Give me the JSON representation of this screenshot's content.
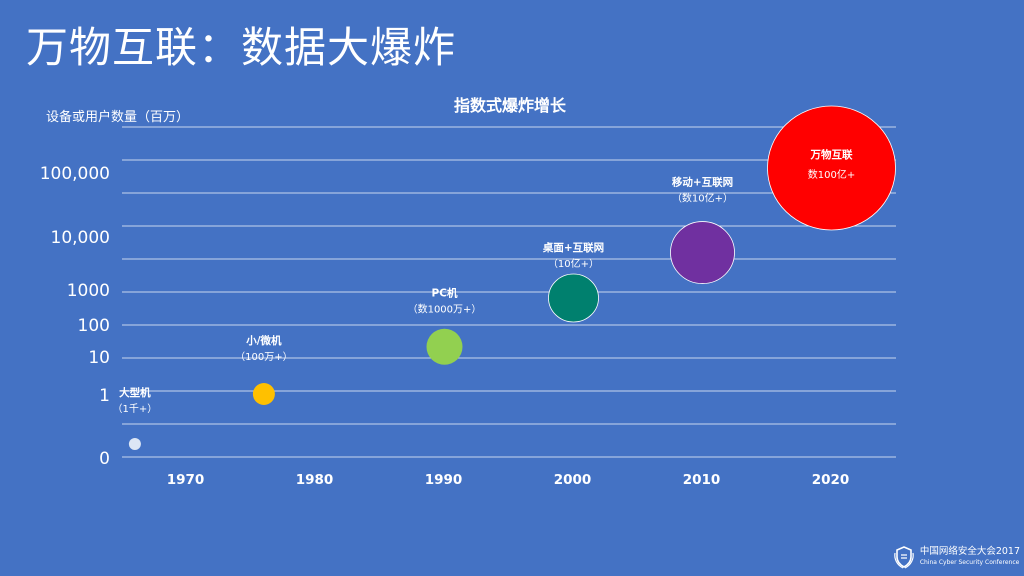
{
  "slide": {
    "title": "万物互联：数据大爆炸"
  },
  "chart_data": {
    "type": "scatter",
    "title": "指数式爆炸增长",
    "ylabel": "设备或用户数量（百万）",
    "xlabel": "",
    "x_ticks": [
      "1970",
      "1980",
      "1990",
      "2000",
      "2010",
      "2020"
    ],
    "y_ticks": [
      "0",
      "1",
      "10",
      "100",
      "1000",
      "10,000",
      "100,000"
    ],
    "grid": true,
    "legend": "none",
    "series": [
      {
        "points": [
          {
            "label": "大型机",
            "sublabel": "（1千+）",
            "x": 1966,
            "y": 0.001,
            "color": "#dce6f5",
            "size": 1
          },
          {
            "label": "小/微机",
            "sublabel": "（100万+）",
            "x": 1976,
            "y": 1,
            "color": "#ffc000",
            "size": 2
          },
          {
            "label": "PC机",
            "sublabel": "（数1000万+）",
            "x": 1990,
            "y": 30,
            "color": "#92d050",
            "size": 3
          },
          {
            "label": "桌面+互联网",
            "sublabel": "（10亿+）",
            "x": 2000,
            "y": 1000,
            "color": "#00806e",
            "size": 4
          },
          {
            "label": "移动+互联网",
            "sublabel": "（数10亿+）",
            "x": 2010,
            "y": 5000,
            "color": "#7030a0",
            "size": 5
          },
          {
            "label": "万物互联",
            "sublabel": "数100亿+",
            "x": 2020,
            "y": 100000,
            "color": "#ff0000",
            "size": 6
          }
        ]
      }
    ]
  },
  "footer": {
    "logo_icon": "shield-laurel-icon",
    "logo_cn": "中国网络安全大会2017",
    "logo_en": "China Cyber Security Conference"
  }
}
